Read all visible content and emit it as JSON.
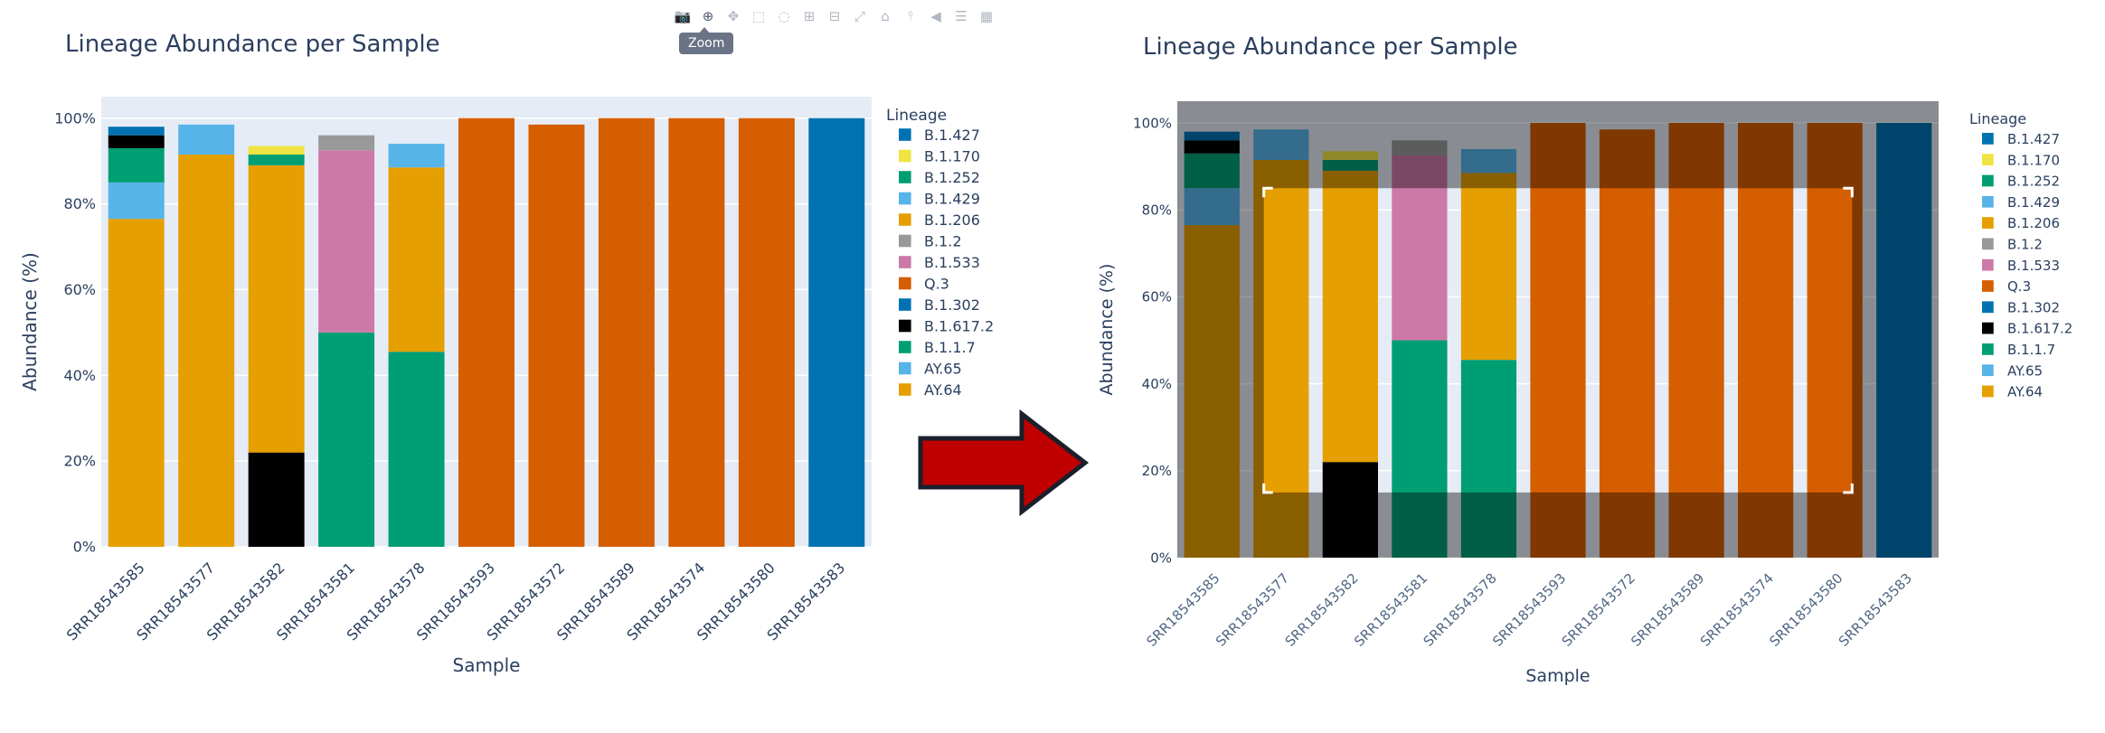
{
  "tooltip": "Zoom",
  "modebar": [
    {
      "name": "camera-icon",
      "glyph": "📷"
    },
    {
      "name": "zoom-icon",
      "glyph": "⊕",
      "active": true
    },
    {
      "name": "pan-icon",
      "glyph": "✥"
    },
    {
      "name": "box-select-icon",
      "glyph": "⬚"
    },
    {
      "name": "lasso-select-icon",
      "glyph": "◌"
    },
    {
      "name": "zoom-in-icon",
      "glyph": "⊞"
    },
    {
      "name": "zoom-out-icon",
      "glyph": "⊟"
    },
    {
      "name": "autoscale-icon",
      "glyph": "⤢"
    },
    {
      "name": "home-icon",
      "glyph": "⌂"
    },
    {
      "name": "spike-lines-icon",
      "glyph": "⫯"
    },
    {
      "name": "hover-closest-icon",
      "glyph": "◀"
    },
    {
      "name": "hover-compare-icon",
      "glyph": "☰"
    },
    {
      "name": "plotly-logo-icon",
      "glyph": "▦"
    }
  ],
  "colors": {
    "B.1.427": "#0072B2",
    "B.1.170": "#F0E442",
    "B.1.252": "#009E73",
    "B.1.429": "#56B4E9",
    "B.1.206": "#E69F00",
    "B.1.2": "#999999",
    "B.1.533": "#CC79A7",
    "Q.3": "#D55E00",
    "B.1.302": "#0072B2",
    "B.1.617.2": "#000000",
    "B.1.1.7": "#009E73",
    "AY.65": "#56B4E9",
    "AY.64": "#E69F00",
    "plot_bg": "#E5ECF6",
    "arrow": "#C00000"
  },
  "chart_data": [
    {
      "type": "bar",
      "stacked": true,
      "title": "Lineage Abundance per Sample",
      "xlabel": "Sample",
      "ylabel": "Abundance (%)",
      "ylim": [
        0,
        105
      ],
      "yticks": [
        "0%",
        "20%",
        "40%",
        "60%",
        "80%",
        "100%"
      ],
      "legend_title": "Lineage",
      "legend_placement": "right",
      "legend": [
        "B.1.427",
        "B.1.170",
        "B.1.252",
        "B.1.429",
        "B.1.206",
        "B.1.2",
        "B.1.533",
        "Q.3",
        "B.1.302",
        "B.1.617.2",
        "B.1.1.7",
        "AY.65",
        "AY.64"
      ],
      "categories": [
        "SRR18543585",
        "SRR18543577",
        "SRR18543582",
        "SRR18543581",
        "SRR18543578",
        "SRR18543593",
        "SRR18543572",
        "SRR18543589",
        "SRR18543574",
        "SRR18543580",
        "SRR18543583"
      ],
      "series": [
        {
          "name": "AY.64",
          "values": [
            76.5,
            0,
            0,
            0,
            0,
            0,
            0,
            0,
            0,
            0,
            0
          ]
        },
        {
          "name": "AY.65",
          "values": [
            8.5,
            0,
            0,
            0,
            0,
            0,
            0,
            0,
            0,
            0,
            0
          ]
        },
        {
          "name": "B.1.1.7",
          "values": [
            8,
            0,
            0,
            50,
            45.5,
            0,
            0,
            0,
            0,
            0,
            0
          ]
        },
        {
          "name": "B.1.617.2",
          "values": [
            3,
            0,
            22,
            0,
            0,
            0,
            0,
            0,
            0,
            0,
            0
          ]
        },
        {
          "name": "B.1.302",
          "values": [
            0,
            0,
            0,
            0,
            0,
            0,
            0,
            0,
            0,
            0,
            100
          ]
        },
        {
          "name": "Q.3",
          "values": [
            0,
            0,
            0,
            0,
            0,
            100,
            98.5,
            100,
            100,
            100,
            0
          ]
        },
        {
          "name": "B.1.533",
          "values": [
            0,
            0,
            0,
            42.5,
            0,
            0,
            0,
            0,
            0,
            0,
            0
          ]
        },
        {
          "name": "B.1.2",
          "values": [
            0,
            0,
            0,
            3.5,
            0,
            0,
            0,
            0,
            0,
            0,
            0
          ]
        },
        {
          "name": "B.1.206",
          "values": [
            0,
            91.5,
            67,
            0,
            43,
            0,
            0,
            0,
            0,
            0,
            0
          ]
        },
        {
          "name": "B.1.429",
          "values": [
            0,
            7,
            0,
            0,
            5.5,
            0,
            0,
            0,
            0,
            0,
            0
          ]
        },
        {
          "name": "B.1.252",
          "values": [
            0,
            0,
            2.5,
            0,
            0,
            0,
            0,
            0,
            0,
            0,
            0
          ]
        },
        {
          "name": "B.1.170",
          "values": [
            0,
            0,
            2,
            0,
            0,
            0,
            0,
            0,
            0,
            0,
            0
          ]
        },
        {
          "name": "B.1.427",
          "values": [
            2,
            0,
            0,
            0,
            0,
            0,
            0,
            0,
            0,
            0,
            0
          ]
        }
      ]
    },
    {
      "type": "bar",
      "stacked": true,
      "title": "Lineage Abundance per Sample",
      "xlabel": "Sample",
      "ylabel": "Abundance (%)",
      "ylim": [
        0,
        105
      ],
      "yticks": [
        "0%",
        "20%",
        "40%",
        "60%",
        "80%",
        "100%"
      ],
      "legend_title": "Lineage",
      "legend_placement": "right",
      "zoom_box": {
        "x_from": "SRR18543577",
        "x_to": "SRR18543580",
        "y_range": [
          15,
          85
        ]
      },
      "legend": [
        "B.1.427",
        "B.1.170",
        "B.1.252",
        "B.1.429",
        "B.1.206",
        "B.1.2",
        "B.1.533",
        "Q.3",
        "B.1.302",
        "B.1.617.2",
        "B.1.1.7",
        "AY.65",
        "AY.64"
      ],
      "categories": [
        "SRR18543585",
        "SRR18543577",
        "SRR18543582",
        "SRR18543581",
        "SRR18543578",
        "SRR18543593",
        "SRR18543572",
        "SRR18543589",
        "SRR18543574",
        "SRR18543580",
        "SRR18543583"
      ],
      "series": [
        {
          "name": "AY.64",
          "values": [
            76.5,
            0,
            0,
            0,
            0,
            0,
            0,
            0,
            0,
            0,
            0
          ]
        },
        {
          "name": "AY.65",
          "values": [
            8.5,
            0,
            0,
            0,
            0,
            0,
            0,
            0,
            0,
            0,
            0
          ]
        },
        {
          "name": "B.1.1.7",
          "values": [
            8,
            0,
            0,
            50,
            45.5,
            0,
            0,
            0,
            0,
            0,
            0
          ]
        },
        {
          "name": "B.1.617.2",
          "values": [
            3,
            0,
            22,
            0,
            0,
            0,
            0,
            0,
            0,
            0,
            0
          ]
        },
        {
          "name": "B.1.302",
          "values": [
            0,
            0,
            0,
            0,
            0,
            0,
            0,
            0,
            0,
            0,
            100
          ]
        },
        {
          "name": "Q.3",
          "values": [
            0,
            0,
            0,
            0,
            0,
            100,
            98.5,
            100,
            100,
            100,
            0
          ]
        },
        {
          "name": "B.1.533",
          "values": [
            0,
            0,
            0,
            42.5,
            0,
            0,
            0,
            0,
            0,
            0,
            0
          ]
        },
        {
          "name": "B.1.2",
          "values": [
            0,
            0,
            0,
            3.5,
            0,
            0,
            0,
            0,
            0,
            0,
            0
          ]
        },
        {
          "name": "B.1.206",
          "values": [
            0,
            91.5,
            67,
            0,
            43,
            0,
            0,
            0,
            0,
            0,
            0
          ]
        },
        {
          "name": "B.1.429",
          "values": [
            0,
            7,
            0,
            0,
            5.5,
            0,
            0,
            0,
            0,
            0,
            0
          ]
        },
        {
          "name": "B.1.252",
          "values": [
            0,
            0,
            2.5,
            0,
            0,
            0,
            0,
            0,
            0,
            0,
            0
          ]
        },
        {
          "name": "B.1.170",
          "values": [
            0,
            0,
            2,
            0,
            0,
            0,
            0,
            0,
            0,
            0,
            0
          ]
        },
        {
          "name": "B.1.427",
          "values": [
            2,
            0,
            0,
            0,
            0,
            0,
            0,
            0,
            0,
            0,
            0
          ]
        }
      ]
    }
  ]
}
